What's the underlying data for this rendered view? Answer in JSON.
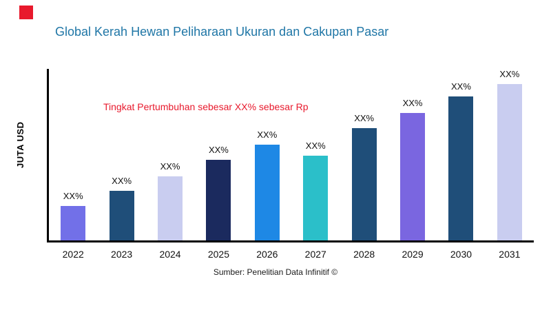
{
  "title": "Global Kerah Hewan Peliharaan Ukuran dan Cakupan Pasar",
  "annotation": "Tingkat Pertumbuhan sebesar XX% sebesar Rp",
  "ylabel": "JUTA USD",
  "source": "Sumber: Penelitian Data Infinitif ©",
  "colors": {
    "title": "#1F76A6",
    "accent_red": "#E8192C",
    "axis": "#000000"
  },
  "chart_data": {
    "type": "bar",
    "title": "Global Kerah Hewan Peliharaan Ukuran dan Cakupan Pasar",
    "xlabel": "",
    "ylabel": "JUTA USD",
    "categories": [
      "2022",
      "2023",
      "2024",
      "2025",
      "2026",
      "2027",
      "2028",
      "2029",
      "2030",
      "2031"
    ],
    "values": [
      50,
      72,
      93,
      117,
      140,
      123,
      164,
      186,
      210,
      233
    ],
    "bar_labels": [
      "XX%",
      "XX%",
      "XX%",
      "XX%",
      "XX%",
      "XX%",
      "XX%",
      "XX%",
      "XX%",
      "XX%"
    ],
    "bar_colors": [
      "#7270E8",
      "#1F4E79",
      "#C9CDF0",
      "#1B2A5E",
      "#1E88E5",
      "#2BBFC9",
      "#1F4E79",
      "#7A66E0",
      "#1F4E79",
      "#C9CDF0"
    ],
    "ylim": [
      0,
      250
    ],
    "grid": false,
    "legend": "none",
    "annotation": "Tingkat Pertumbuhan sebesar XX% sebesar Rp"
  }
}
